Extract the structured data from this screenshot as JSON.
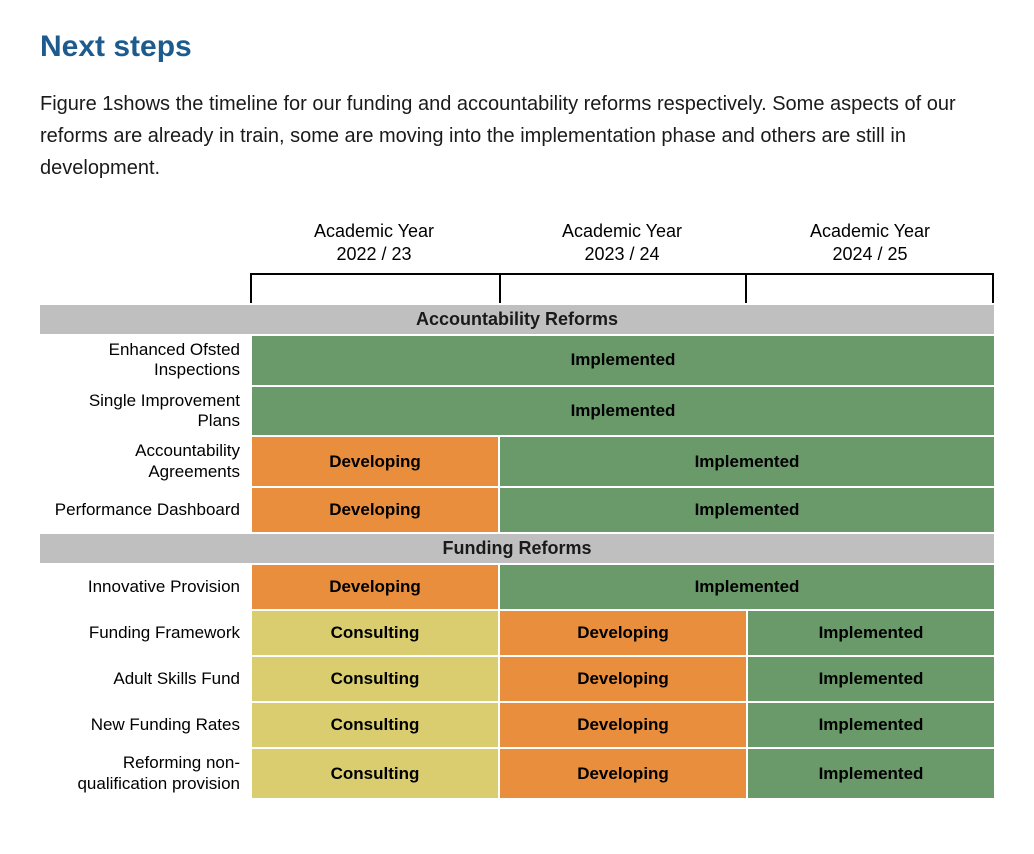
{
  "heading": "Next steps",
  "body_text": "Figure 1shows the timeline for our funding and accountability reforms respectively. Some aspects of our reforms are already in train, some are moving into the implementation phase and others are still in development.",
  "colors": {
    "heading": "#1d5b8f",
    "section_header_bg": "#bfbfbf",
    "implemented": "#6a9a6a",
    "developing": "#e98e3c",
    "consulting": "#d9cd70",
    "text": "#1a1a1a",
    "cell_text": "#000000"
  },
  "status_labels": {
    "implemented": "Implemented",
    "developing": "Developing",
    "consulting": "Consulting"
  },
  "years": [
    {
      "line1": "Academic Year",
      "line2": "2022 / 23"
    },
    {
      "line1": "Academic Year",
      "line2": "2023 / 24"
    },
    {
      "line1": "Academic Year",
      "line2": "2024 / 25"
    }
  ],
  "sections": [
    {
      "title": "Accountability Reforms",
      "rows": [
        {
          "label": "Enhanced Ofsted Inspections",
          "cells": [
            {
              "status": "implemented",
              "span": 3
            }
          ]
        },
        {
          "label": "Single Improvement Plans",
          "cells": [
            {
              "status": "implemented",
              "span": 3
            }
          ]
        },
        {
          "label": "Accountability Agreements",
          "cells": [
            {
              "status": "developing",
              "span": 1
            },
            {
              "status": "implemented",
              "span": 2
            }
          ]
        },
        {
          "label": "Performance Dashboard",
          "cells": [
            {
              "status": "developing",
              "span": 1
            },
            {
              "status": "implemented",
              "span": 2
            }
          ]
        }
      ]
    },
    {
      "title": "Funding Reforms",
      "rows": [
        {
          "label": "Innovative Provision",
          "cells": [
            {
              "status": "developing",
              "span": 1
            },
            {
              "status": "implemented",
              "span": 2
            }
          ]
        },
        {
          "label": "Funding Framework",
          "cells": [
            {
              "status": "consulting",
              "span": 1
            },
            {
              "status": "developing",
              "span": 1
            },
            {
              "status": "implemented",
              "span": 1
            }
          ]
        },
        {
          "label": "Adult Skills Fund",
          "cells": [
            {
              "status": "consulting",
              "span": 1
            },
            {
              "status": "developing",
              "span": 1
            },
            {
              "status": "implemented",
              "span": 1
            }
          ]
        },
        {
          "label": "New Funding Rates",
          "cells": [
            {
              "status": "consulting",
              "span": 1
            },
            {
              "status": "developing",
              "span": 1
            },
            {
              "status": "implemented",
              "span": 1
            }
          ]
        },
        {
          "label": "Reforming non-qualification provision",
          "cells": [
            {
              "status": "consulting",
              "span": 1
            },
            {
              "status": "developing",
              "span": 1
            },
            {
              "status": "implemented",
              "span": 1
            }
          ]
        }
      ]
    }
  ]
}
